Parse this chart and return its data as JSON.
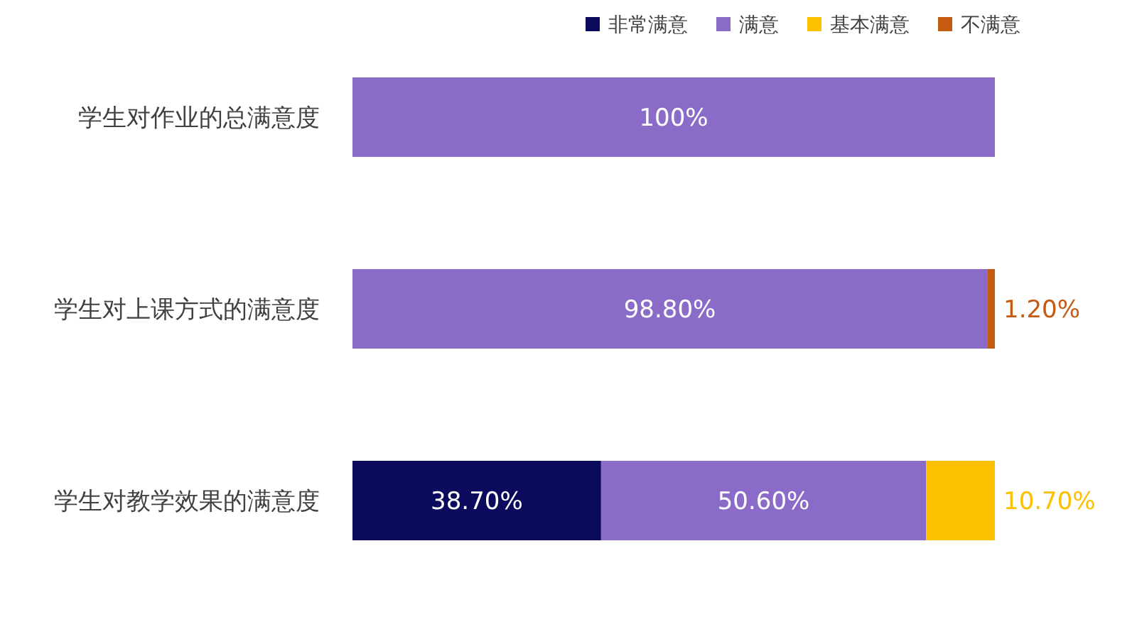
{
  "chart_data": {
    "type": "bar",
    "orientation": "horizontal",
    "stacked": true,
    "legend": "top right",
    "categories": [
      "学生对作业的总满意度",
      "学生对上课方式的满意度",
      "学生对教学效果的满意度"
    ],
    "series": [
      {
        "name": "非常满意",
        "color": "#0c0a5c",
        "values": [
          null,
          null,
          38.7
        ],
        "value_labels": [
          null,
          null,
          "38.70%"
        ]
      },
      {
        "name": "满意",
        "color": "#8a6cc8",
        "values": [
          100,
          98.8,
          50.6
        ],
        "value_labels": [
          "100%",
          "98.80%",
          "50.60%"
        ]
      },
      {
        "name": "基本满意",
        "color": "#fcc000",
        "values": [
          null,
          null,
          10.7
        ],
        "value_labels": [
          null,
          null,
          "10.70%"
        ]
      },
      {
        "name": "不满意",
        "color": "#c55a11",
        "values": [
          null,
          1.2,
          null
        ],
        "value_labels": [
          null,
          "1.20%",
          null
        ]
      }
    ]
  }
}
